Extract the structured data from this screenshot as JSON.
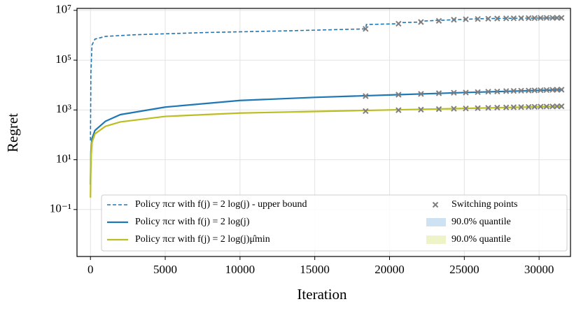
{
  "chart_data": {
    "type": "line",
    "x_label": "Iteration",
    "y_label": "Regret",
    "log_y": true,
    "grid": true,
    "legend": "lower center",
    "xlim": [
      -900,
      32100
    ],
    "ylim": [
      0.0013,
      12000000
    ],
    "xticks": [
      0,
      5000,
      10000,
      15000,
      20000,
      25000,
      30000
    ],
    "yticks": [
      {
        "value": 0.1,
        "label": "10⁻¹"
      },
      {
        "value": 10,
        "label": "10¹"
      },
      {
        "value": 1000,
        "label": "10³"
      },
      {
        "value": 100000,
        "label": "10⁵"
      },
      {
        "value": 10000000,
        "label": "10⁷"
      }
    ],
    "series": [
      {
        "name": "Policy πcr with f(j) = 2 log(j) - upper bound",
        "color": "#1f77b4",
        "dashed": true,
        "x": [
          0,
          30,
          100,
          300,
          1000,
          3000,
          8000,
          13000,
          18400,
          18450,
          20600,
          20650,
          22100,
          22150,
          24300,
          26000,
          28000,
          31600
        ],
        "values": [
          60,
          30000,
          400000,
          700000,
          900000,
          1050000,
          1300000,
          1500000,
          1800000,
          2700000,
          2900000,
          3200000,
          3400000,
          3700000,
          4200000,
          4600000,
          4800000,
          5000000
        ]
      },
      {
        "name": "Policy πcr with f(j) = 2 log(j)",
        "color": "#1f77b4",
        "dashed": false,
        "x": [
          0,
          30,
          100,
          300,
          1000,
          2000,
          5000,
          10000,
          15000,
          20000,
          25000,
          31600
        ],
        "values": [
          1,
          20,
          70,
          150,
          350,
          650,
          1300,
          2400,
          3200,
          4000,
          5000,
          6500
        ]
      },
      {
        "name": "Policy πcr with f(j) = 2 log(j)μ̂min",
        "color": "#bcbd22",
        "dashed": false,
        "x": [
          0,
          30,
          100,
          300,
          1000,
          2000,
          5000,
          10000,
          15000,
          20000,
          25000,
          31600
        ],
        "values": [
          0.3,
          15,
          50,
          110,
          220,
          330,
          550,
          750,
          870,
          1000,
          1150,
          1400
        ]
      }
    ],
    "switching_points": {
      "name": "Switching points",
      "color": "#7f7f7f",
      "x": [
        18400,
        20600,
        22100,
        23300,
        24300,
        25100,
        25900,
        26600,
        27200,
        27800,
        28300,
        28800,
        29300,
        29700,
        30100,
        30500,
        30900,
        31200,
        31500
      ],
      "groups": [
        [
          1800000,
          2900000,
          3400000,
          3800000,
          4200000,
          4400000,
          4500000,
          4600000,
          4700000,
          4750000,
          4800000,
          4850000,
          4900000,
          4900000,
          4950000,
          5000000,
          5000000,
          5000000,
          5000000
        ],
        [
          3600,
          4100,
          4400,
          4700,
          4900,
          5000,
          5200,
          5400,
          5500,
          5700,
          5800,
          5900,
          6000,
          6100,
          6200,
          6300,
          6400,
          6450,
          6500
        ],
        [
          900,
          980,
          1030,
          1080,
          1120,
          1150,
          1180,
          1210,
          1240,
          1260,
          1280,
          1300,
          1320,
          1340,
          1360,
          1370,
          1380,
          1390,
          1400
        ]
      ]
    },
    "bands": [
      {
        "name": "90.0% quantile",
        "color": "#cfe2f3",
        "x": [
          0,
          50,
          200
        ],
        "lower": [
          0.003,
          3,
          30
        ],
        "upper": [
          2,
          20,
          80
        ]
      },
      {
        "name": "90.0% quantile",
        "color": "#eef3c8",
        "x": [
          0,
          50,
          200
        ],
        "lower": [
          0.05,
          2,
          20
        ],
        "upper": [
          1,
          15,
          60
        ]
      }
    ]
  }
}
